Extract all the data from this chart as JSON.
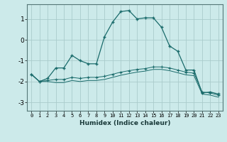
{
  "xlabel": "Humidex (Indice chaleur)",
  "background_color": "#cceaea",
  "grid_color": "#aacccc",
  "line_color": "#1a6b6b",
  "xlim": [
    -0.5,
    23.5
  ],
  "ylim": [
    -3.4,
    1.7
  ],
  "yticks": [
    -3,
    -2,
    -1,
    0,
    1
  ],
  "xticks": [
    0,
    1,
    2,
    3,
    4,
    5,
    6,
    7,
    8,
    9,
    10,
    11,
    12,
    13,
    14,
    15,
    16,
    17,
    18,
    19,
    20,
    21,
    22,
    23
  ],
  "line1_x": [
    0,
    1,
    2,
    3,
    4,
    5,
    6,
    7,
    8,
    9,
    10,
    11,
    12,
    13,
    14,
    15,
    16,
    17,
    18,
    19,
    20,
    21,
    22,
    23
  ],
  "line1_y": [
    -1.65,
    -2.0,
    -1.85,
    -1.35,
    -1.35,
    -0.75,
    -1.0,
    -1.15,
    -1.15,
    0.15,
    0.85,
    1.35,
    1.4,
    1.0,
    1.05,
    1.05,
    0.6,
    -0.3,
    -0.55,
    -1.45,
    -1.45,
    -2.55,
    -2.5,
    -2.6
  ],
  "line2_x": [
    0,
    1,
    2,
    3,
    4,
    5,
    6,
    7,
    8,
    9,
    10,
    11,
    12,
    13,
    14,
    15,
    16,
    17,
    18,
    19,
    20,
    21,
    22,
    23
  ],
  "line2_y": [
    -1.65,
    -2.0,
    -1.95,
    -1.9,
    -1.9,
    -1.8,
    -1.85,
    -1.8,
    -1.8,
    -1.75,
    -1.65,
    -1.55,
    -1.48,
    -1.42,
    -1.38,
    -1.3,
    -1.3,
    -1.35,
    -1.45,
    -1.55,
    -1.6,
    -2.5,
    -2.55,
    -2.65
  ],
  "line3_x": [
    0,
    1,
    2,
    3,
    4,
    5,
    6,
    7,
    8,
    9,
    10,
    11,
    12,
    13,
    14,
    15,
    16,
    17,
    18,
    19,
    20,
    21,
    22,
    23
  ],
  "line3_y": [
    -1.65,
    -2.0,
    -2.0,
    -2.05,
    -2.05,
    -1.95,
    -2.0,
    -1.95,
    -1.95,
    -1.9,
    -1.8,
    -1.7,
    -1.62,
    -1.55,
    -1.5,
    -1.42,
    -1.42,
    -1.48,
    -1.58,
    -1.68,
    -1.72,
    -2.6,
    -2.65,
    -2.75
  ]
}
